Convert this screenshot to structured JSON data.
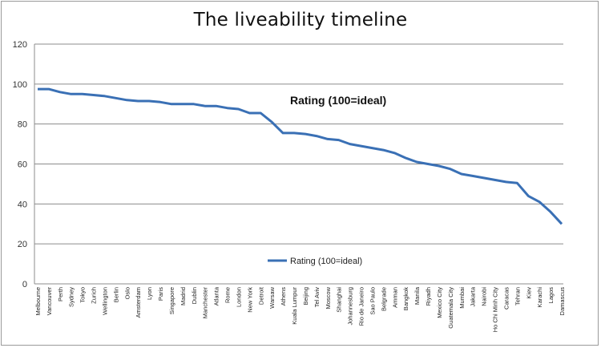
{
  "chart_data": {
    "type": "line",
    "title": "The liveability timeline",
    "annotation": "Rating (100=ideal)",
    "ylim": [
      0,
      120
    ],
    "yticks": [
      0,
      20,
      40,
      60,
      80,
      100,
      120
    ],
    "grid": true,
    "legend_position": "bottom-center",
    "line_color": "#3a70b5",
    "categories": [
      "Melbourne",
      "Vancouver",
      "Perth",
      "Sydney",
      "Tokyo",
      "Zurich",
      "Wellington",
      "Berlin",
      "Oslo",
      "Amsterdam",
      "Lyon",
      "Paris",
      "Singapore",
      "Madrid",
      "Dublin",
      "Manchester",
      "Atlanta",
      "Rome",
      "London",
      "New York",
      "Detroit",
      "Warsaw",
      "Athens",
      "Kuala Lumpur",
      "Beijing",
      "Tel Aviv",
      "Moscow",
      "Shanghai",
      "Johannesburg",
      "Rio de Janeiro",
      "Sao Paulo",
      "Belgrade",
      "Amman",
      "Bangkok",
      "Manila",
      "Riyadh",
      "Mexico City",
      "Guatemala City",
      "Mumbai",
      "Jakarta",
      "Nairobi",
      "Ho Chi Minh City",
      "Caracas",
      "Tehran",
      "Kiev",
      "Karachi",
      "Lagos",
      "Damascus"
    ],
    "series": [
      {
        "name": "Rating (100=ideal)",
        "values": [
          97.5,
          97.5,
          96,
          95,
          95,
          94.5,
          94,
          93,
          92,
          91.5,
          91.5,
          91,
          90,
          90,
          90,
          89,
          89,
          88,
          87.5,
          85.5,
          85.5,
          81,
          75.5,
          75.5,
          75,
          74,
          72.5,
          72,
          70,
          69,
          68,
          67,
          65.5,
          63,
          61,
          60,
          59,
          57.5,
          55,
          54,
          53,
          52,
          51,
          50.5,
          44,
          41,
          36,
          30
        ]
      }
    ]
  }
}
